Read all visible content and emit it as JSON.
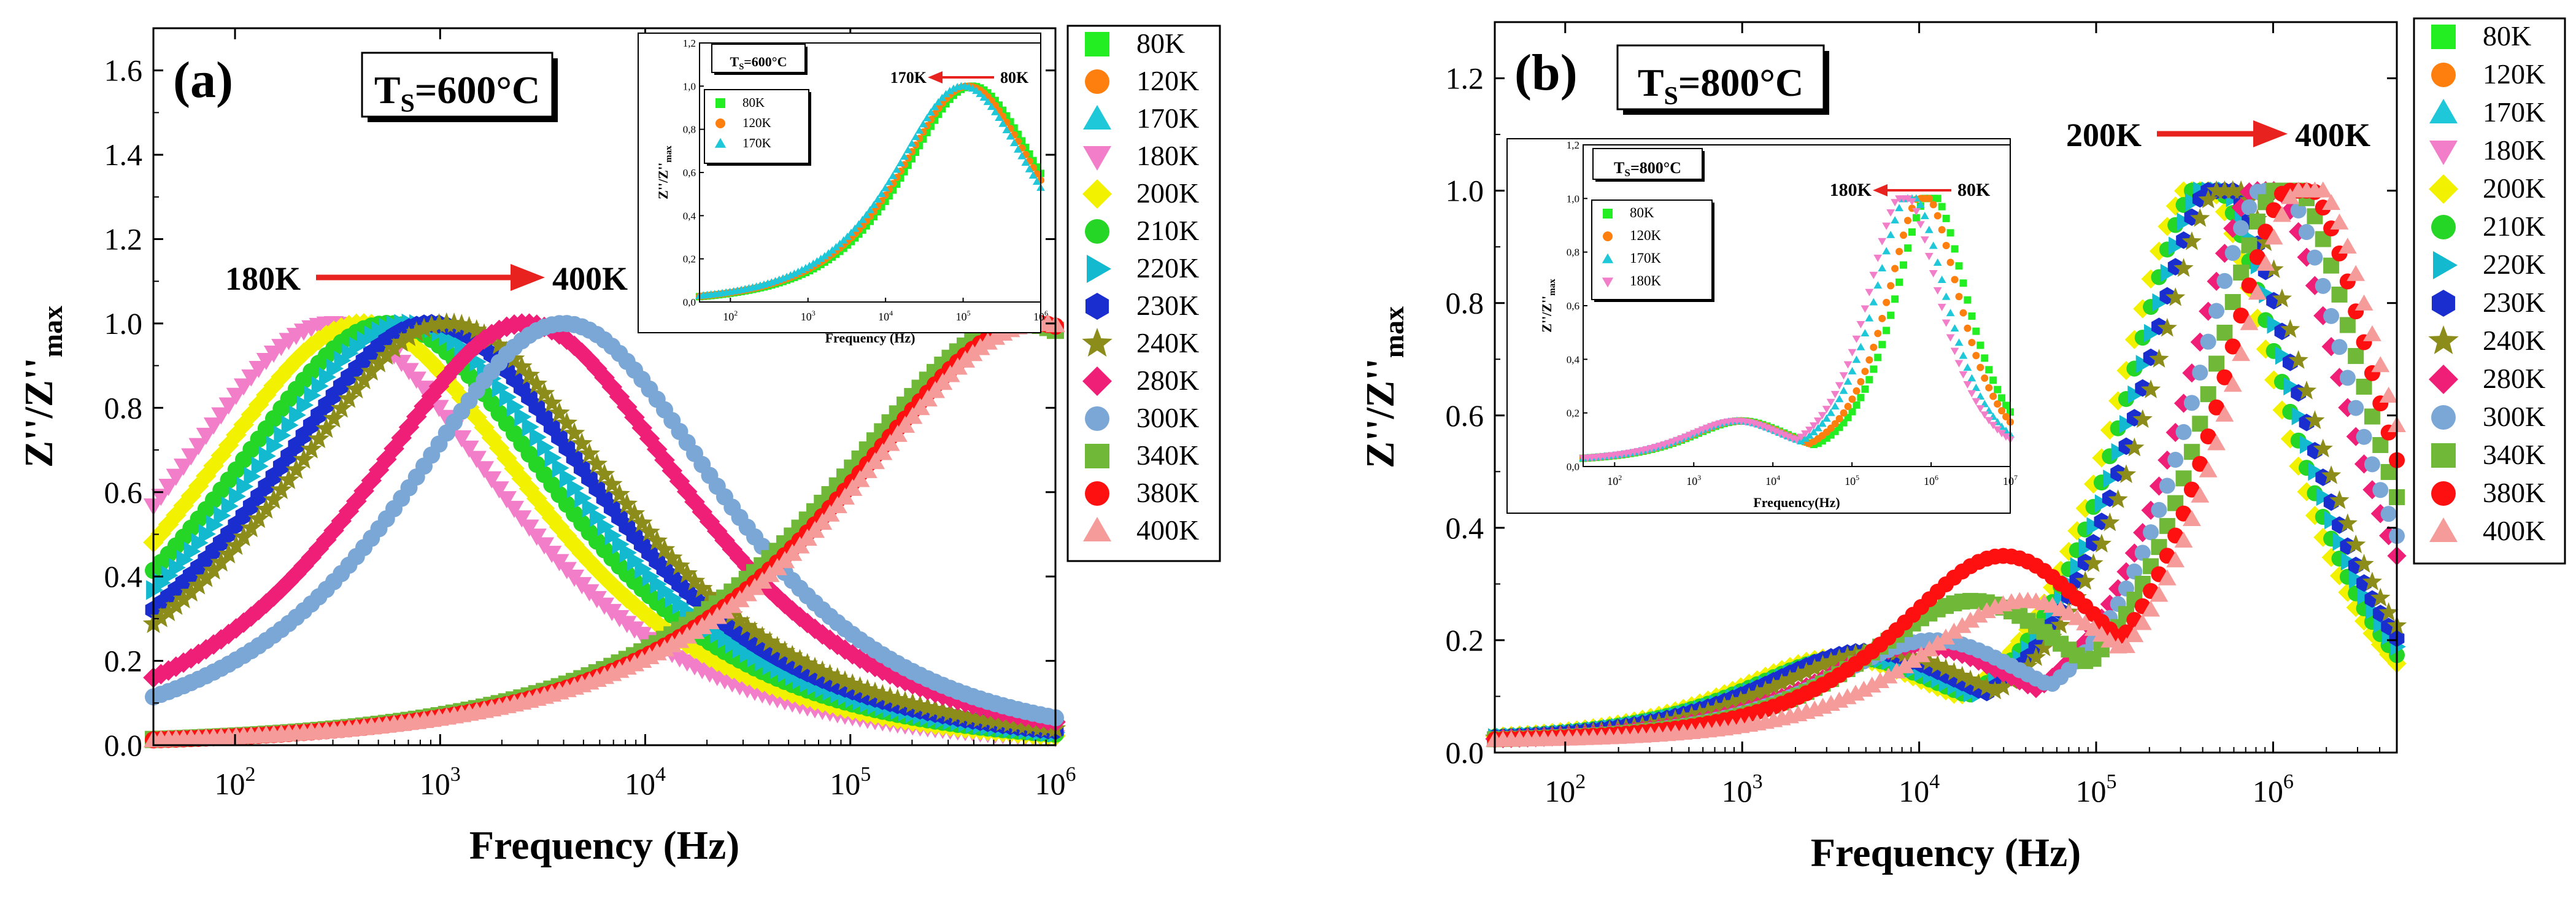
{
  "colors": {
    "80K": "#22ee22",
    "120K": "#ff7f0e",
    "170K": "#1ec8d8",
    "180K": "#f27ec9",
    "200K": "#f2f200",
    "210K": "#26d626",
    "220K": "#12b9cf",
    "230K": "#1a2ed0",
    "240K": "#8c8c1a",
    "280K": "#ef1f78",
    "300K": "#7aa7d6",
    "340K": "#6fb838",
    "380K": "#ff1010",
    "400K": "#f59c9a",
    "arrow": "#e8231f"
  },
  "chart_data": [
    {
      "type": "scatter",
      "panel_label": "(a)",
      "title_box": {
        "main": "T",
        "sub": "S",
        "rest": "=600°C"
      },
      "xlabel": "Frequency (Hz)",
      "ylabel": {
        "main": "Z''/Z''",
        "sub": "max"
      },
      "xscale": "log",
      "xlim": [
        40,
        1000000
      ],
      "ylim": [
        0,
        1.7
      ],
      "x_ticks": [
        {
          "base": "10",
          "exp": "2",
          "value": 100
        },
        {
          "base": "10",
          "exp": "3",
          "value": 1000
        },
        {
          "base": "10",
          "exp": "4",
          "value": 10000
        },
        {
          "base": "10",
          "exp": "5",
          "value": 100000
        },
        {
          "base": "10",
          "exp": "6",
          "value": 1000000
        }
      ],
      "y_ticks": [
        "0.0",
        "0.2",
        "0.4",
        "0.6",
        "0.8",
        "1.0",
        "1.2",
        "1.4",
        "1.6"
      ],
      "annotation": {
        "from": "180K",
        "to": "400K",
        "direction": "right"
      },
      "legend": [
        "80K",
        "120K",
        "170K",
        "180K",
        "200K",
        "210K",
        "220K",
        "230K",
        "240K",
        "280K",
        "300K",
        "340K",
        "380K",
        "400K"
      ],
      "series": [
        {
          "name": "180K",
          "marker": "triangle-down",
          "peak_hz": 300,
          "width": 0.75
        },
        {
          "name": "200K",
          "marker": "diamond",
          "peak_hz": 420,
          "width": 0.75
        },
        {
          "name": "210K",
          "marker": "circle",
          "peak_hz": 560,
          "width": 0.75
        },
        {
          "name": "220K",
          "marker": "triangle-right",
          "peak_hz": 700,
          "width": 0.75
        },
        {
          "name": "230K",
          "marker": "hexagon",
          "peak_hz": 900,
          "width": 0.75
        },
        {
          "name": "240K",
          "marker": "star",
          "peak_hz": 1100,
          "width": 0.75
        },
        {
          "name": "280K",
          "marker": "diamond",
          "peak_hz": 2600,
          "width": 0.72
        },
        {
          "name": "300K",
          "marker": "circle",
          "peak_hz": 4000,
          "width": 0.7
        },
        {
          "name": "340K",
          "marker": "square",
          "peak_hz": 700000,
          "width": 0.85
        },
        {
          "name": "380K",
          "marker": "circle",
          "peak_hz": 800000,
          "width": 0.85
        },
        {
          "name": "400K",
          "marker": "triangle",
          "peak_hz": 850000,
          "width": 0.85
        }
      ],
      "inset": {
        "title_box": {
          "main": "T",
          "sub": "S",
          "rest": "=600°C"
        },
        "xlabel": "Frequency (Hz)",
        "ylabel": {
          "main": "Z''/Z''",
          "sub": "max"
        },
        "xlim": [
          40,
          1000000
        ],
        "ylim": [
          0,
          1.2
        ],
        "x_ticks": [
          {
            "base": "10",
            "exp": "2",
            "value": 100
          },
          {
            "base": "10",
            "exp": "3",
            "value": 1000
          },
          {
            "base": "10",
            "exp": "4",
            "value": 10000
          },
          {
            "base": "10",
            "exp": "5",
            "value": 100000
          },
          {
            "base": "10",
            "exp": "6",
            "value": 1000000
          }
        ],
        "y_ticks": [
          "0,0",
          "0,2",
          "0,4",
          "0,6",
          "0,8",
          "1,0",
          "1,2"
        ],
        "annotation": {
          "from": "80K",
          "to": "170K",
          "direction": "left"
        },
        "legend": [
          "80K",
          "120K",
          "170K"
        ],
        "series": [
          {
            "name": "80K",
            "marker": "square",
            "peak_hz": 130000
          },
          {
            "name": "120K",
            "marker": "circle",
            "peak_hz": 115000
          },
          {
            "name": "170K",
            "marker": "triangle",
            "peak_hz": 100000
          }
        ]
      }
    },
    {
      "type": "scatter",
      "panel_label": "(b)",
      "title_box": {
        "main": "T",
        "sub": "S",
        "rest": "=800°C"
      },
      "xlabel": "Frequency (Hz)",
      "ylabel": {
        "main": "Z''/Z''",
        "sub": "max"
      },
      "xscale": "log",
      "xlim": [
        40,
        5000000
      ],
      "ylim": [
        0,
        1.3
      ],
      "x_ticks": [
        {
          "base": "10",
          "exp": "2",
          "value": 100
        },
        {
          "base": "10",
          "exp": "3",
          "value": 1000
        },
        {
          "base": "10",
          "exp": "4",
          "value": 10000
        },
        {
          "base": "10",
          "exp": "5",
          "value": 100000
        },
        {
          "base": "10",
          "exp": "6",
          "value": 1000000
        }
      ],
      "y_ticks": [
        "0.0",
        "0.2",
        "0.4",
        "0.6",
        "0.8",
        "1.0",
        "1.2"
      ],
      "annotation": {
        "from": "200K",
        "to": "400K",
        "direction": "right"
      },
      "legend": [
        "80K",
        "120K",
        "170K",
        "180K",
        "200K",
        "210K",
        "220K",
        "230K",
        "240K",
        "280K",
        "300K",
        "340K",
        "380K",
        "400K"
      ],
      "series": [
        {
          "name": "200K",
          "marker": "diamond",
          "peak_hz": 380000,
          "shoulder_hz": 3500,
          "shoulder": 0.15
        },
        {
          "name": "210K",
          "marker": "circle",
          "peak_hz": 420000,
          "shoulder_hz": 4000,
          "shoulder": 0.15
        },
        {
          "name": "220K",
          "marker": "triangle-right",
          "peak_hz": 460000,
          "shoulder_hz": 4500,
          "shoulder": 0.15
        },
        {
          "name": "230K",
          "marker": "hexagon",
          "peak_hz": 500000,
          "shoulder_hz": 5000,
          "shoulder": 0.16
        },
        {
          "name": "240K",
          "marker": "star",
          "peak_hz": 560000,
          "shoulder_hz": 6000,
          "shoulder": 0.16
        },
        {
          "name": "280K",
          "marker": "diamond",
          "peak_hz": 900000,
          "shoulder_hz": 10000,
          "shoulder": 0.17
        },
        {
          "name": "300K",
          "marker": "circle",
          "peak_hz": 1000000,
          "shoulder_hz": 12000,
          "shoulder": 0.18
        },
        {
          "name": "340K",
          "marker": "square",
          "peak_hz": 1200000,
          "shoulder_hz": 20000,
          "shoulder": 0.25
        },
        {
          "name": "380K",
          "marker": "circle",
          "peak_hz": 1400000,
          "shoulder_hz": 30000,
          "shoulder": 0.33
        },
        {
          "name": "400K",
          "marker": "triangle",
          "peak_hz": 1600000,
          "shoulder_hz": 40000,
          "shoulder": 0.25
        }
      ],
      "inset": {
        "title_box": {
          "main": "T",
          "sub": "S",
          "rest": "=800°C"
        },
        "xlabel": "Frequency(Hz)",
        "ylabel": {
          "main": "Z''/Z''",
          "sub": "max"
        },
        "xlim": [
          40,
          10000000
        ],
        "ylim": [
          0,
          1.2
        ],
        "x_ticks": [
          {
            "base": "10",
            "exp": "2",
            "value": 100
          },
          {
            "base": "10",
            "exp": "3",
            "value": 1000
          },
          {
            "base": "10",
            "exp": "4",
            "value": 10000
          },
          {
            "base": "10",
            "exp": "5",
            "value": 100000
          },
          {
            "base": "10",
            "exp": "6",
            "value": 1000000
          },
          {
            "base": "10",
            "exp": "7",
            "value": 10000000
          }
        ],
        "y_ticks": [
          "0,0",
          "0,2",
          "0,4",
          "0,6",
          "0,8",
          "1,0",
          "1,2"
        ],
        "annotation": {
          "from": "80K",
          "to": "180K",
          "direction": "left"
        },
        "legend": [
          "80K",
          "120K",
          "170K",
          "180K"
        ],
        "series": [
          {
            "name": "80K",
            "marker": "square",
            "peak_hz": 1000000,
            "shoulder_hz": 4000,
            "shoulder": 0.15
          },
          {
            "name": "120K",
            "marker": "circle",
            "peak_hz": 800000,
            "shoulder_hz": 3800,
            "shoulder": 0.15
          },
          {
            "name": "170K",
            "marker": "triangle",
            "peak_hz": 550000,
            "shoulder_hz": 3600,
            "shoulder": 0.15
          },
          {
            "name": "180K",
            "marker": "triangle-down",
            "peak_hz": 450000,
            "shoulder_hz": 3500,
            "shoulder": 0.15
          }
        ]
      }
    }
  ]
}
